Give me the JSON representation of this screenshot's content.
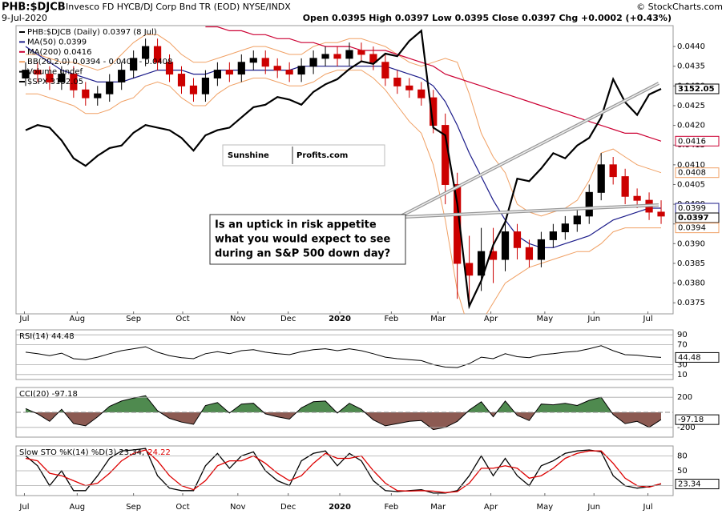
{
  "chart_data": [
    {
      "type": "candlestick",
      "title": "PHB:$DJCB",
      "subtitle": "Invesco FD HYCB/DJ Corp Bnd TR (EOD) NYSE/INDX",
      "date": "9-Jul-2020",
      "source": "© StockCharts.com",
      "quote": "Open 0.0395 High 0.0397 Low 0.0395 Close 0.0397 Chg +0.0002 (+0.43%)",
      "name": "PHB:$DJCB (Daily) 0.0397 (8 Jul)",
      "tag": "0.0397",
      "legend_extra": "Volume undef",
      "logo": [
        "Sunshine",
        "Profits.com"
      ],
      "annotation": [
        "Is an uptick in risk appetite",
        "what you would expect to see",
        "during an S&P 500 down day?"
      ],
      "up_color": "#000000",
      "down_color": "#cc0000",
      "grid": false,
      "x": [
        0,
        1,
        2,
        3,
        4,
        5,
        6,
        7,
        8,
        9,
        10,
        11,
        12,
        13,
        14,
        15,
        16,
        17,
        18,
        19,
        20,
        21,
        22,
        23,
        24,
        25,
        26,
        27,
        28,
        29,
        30,
        31,
        32,
        33,
        34,
        35,
        36,
        37,
        38,
        39,
        40,
        41,
        42,
        43,
        44,
        45,
        46,
        47,
        48,
        49,
        50,
        51,
        52,
        53
      ],
      "xlim": [
        -0.8,
        54
      ],
      "xticks": [
        {
          "value": -0.1,
          "label": "Jul"
        },
        {
          "value": 4.3,
          "label": "Aug"
        },
        {
          "value": 9.0,
          "label": "Sep"
        },
        {
          "value": 13.1,
          "label": "Oct"
        },
        {
          "value": 17.7,
          "label": "Nov"
        },
        {
          "value": 21.9,
          "label": "Dec"
        },
        {
          "value": 26.2,
          "label": "2020"
        },
        {
          "value": 30.5,
          "label": "Feb"
        },
        {
          "value": 34.4,
          "label": "Mar"
        },
        {
          "value": 38.8,
          "label": "Apr"
        },
        {
          "value": 43.3,
          "label": "May"
        },
        {
          "value": 47.4,
          "label": "Jun"
        },
        {
          "value": 51.9,
          "label": "Jul"
        }
      ],
      "ylim": [
        0.03722,
        0.04453
      ],
      "yticks": [
        0.0375,
        {
          "value": 0.038,
          "label": "0.0380"
        },
        0.0385,
        {
          "value": 0.039,
          "label": "0.0390"
        },
        0.0395,
        {
          "value": 0.04,
          "label": "0.0400"
        },
        0.0405,
        {
          "value": 0.041,
          "label": "0.0410"
        },
        0.0415,
        {
          "value": 0.042,
          "label": "0.0420"
        },
        0.0425,
        {
          "value": 0.043,
          "label": "0.0430"
        },
        0.0435,
        {
          "value": 0.044,
          "label": "0.0440"
        }
      ],
      "y2lim": [
        2270,
        3400
      ],
      "open": [
        0.0432,
        0.0434,
        0.0433,
        0.0431,
        0.0433,
        0.0429,
        0.0427,
        0.0428,
        0.0431,
        0.0434,
        0.0437,
        0.044,
        0.0436,
        0.0433,
        0.043,
        0.0428,
        0.0432,
        0.0434,
        0.0433,
        0.0436,
        0.0437,
        0.0435,
        0.0434,
        0.0433,
        0.0435,
        0.0437,
        0.0438,
        0.0437,
        0.0439,
        0.0438,
        0.0436,
        0.0432,
        0.043,
        0.0429,
        0.0427,
        0.042,
        0.0405,
        0.0385,
        0.0382,
        0.0388,
        0.0386,
        0.0393,
        0.0389,
        0.0386,
        0.0391,
        0.0393,
        0.0395,
        0.0397,
        0.0403,
        0.041,
        0.0407,
        0.0402,
        0.0401,
        0.0398
      ],
      "high": [
        0.0436,
        0.0436,
        0.0435,
        0.0435,
        0.0435,
        0.0431,
        0.043,
        0.0433,
        0.0436,
        0.0439,
        0.0442,
        0.0442,
        0.0438,
        0.0435,
        0.0432,
        0.0434,
        0.0436,
        0.0436,
        0.0438,
        0.0439,
        0.0439,
        0.0437,
        0.0436,
        0.0437,
        0.0439,
        0.044,
        0.044,
        0.0441,
        0.0441,
        0.044,
        0.0438,
        0.0434,
        0.0432,
        0.0431,
        0.0429,
        0.0423,
        0.0408,
        0.0392,
        0.0394,
        0.0394,
        0.0396,
        0.0395,
        0.0391,
        0.0393,
        0.0395,
        0.0397,
        0.0399,
        0.0405,
        0.0413,
        0.0412,
        0.0409,
        0.0404,
        0.0403,
        0.0401
      ],
      "low": [
        0.043,
        0.0431,
        0.0429,
        0.0429,
        0.0427,
        0.0425,
        0.0425,
        0.0426,
        0.0429,
        0.0432,
        0.0435,
        0.0434,
        0.0431,
        0.0428,
        0.0426,
        0.0426,
        0.043,
        0.0431,
        0.0431,
        0.0434,
        0.0433,
        0.0432,
        0.0431,
        0.0431,
        0.0433,
        0.0435,
        0.0435,
        0.0435,
        0.0436,
        0.0434,
        0.043,
        0.0428,
        0.0427,
        0.0425,
        0.0418,
        0.04,
        0.0376,
        0.0375,
        0.0378,
        0.038,
        0.0383,
        0.0386,
        0.0384,
        0.0384,
        0.0389,
        0.0391,
        0.0393,
        0.0395,
        0.0401,
        0.0405,
        0.04,
        0.0399,
        0.0396,
        0.0395
      ],
      "close": [
        0.0434,
        0.0433,
        0.0431,
        0.0433,
        0.0429,
        0.0427,
        0.0428,
        0.0431,
        0.0434,
        0.0437,
        0.044,
        0.0436,
        0.0433,
        0.043,
        0.0428,
        0.0432,
        0.0434,
        0.0433,
        0.0436,
        0.0437,
        0.0435,
        0.0434,
        0.0433,
        0.0435,
        0.0437,
        0.0438,
        0.0437,
        0.0439,
        0.0438,
        0.0436,
        0.0432,
        0.043,
        0.0429,
        0.0427,
        0.042,
        0.0405,
        0.0385,
        0.0382,
        0.0388,
        0.0386,
        0.0393,
        0.0389,
        0.0386,
        0.0391,
        0.0393,
        0.0395,
        0.0397,
        0.0403,
        0.041,
        0.0407,
        0.0402,
        0.0401,
        0.0398,
        0.0397
      ],
      "series": [
        {
          "name": "MA(50) 0.0399",
          "color": "#1c1c8a",
          "tag": "0.0399",
          "values": [
            0.044,
            0.0438,
            0.0436,
            0.0434,
            0.0433,
            0.0432,
            0.0431,
            0.0431,
            0.0431,
            0.0432,
            0.0433,
            0.0434,
            0.0434,
            0.0434,
            0.0433,
            0.0433,
            0.0434,
            0.0434,
            0.0434,
            0.0434,
            0.0434,
            0.0434,
            0.0434,
            0.0435,
            0.0435,
            0.0435,
            0.0435,
            0.0435,
            0.0435,
            0.0435,
            0.0435,
            0.0434,
            0.0433,
            0.0432,
            0.043,
            0.0426,
            0.042,
            0.0413,
            0.0407,
            0.0401,
            0.0396,
            0.0392,
            0.039,
            0.0389,
            0.0389,
            0.039,
            0.0391,
            0.0392,
            0.0394,
            0.0396,
            0.0397,
            0.0398,
            0.0399,
            0.0399
          ]
        },
        {
          "name": "MA(200) 0.0416",
          "color": "#cc0033",
          "tag": "0.0416",
          "values": [
            null,
            null,
            null,
            null,
            null,
            null,
            null,
            null,
            null,
            null,
            null,
            null,
            null,
            null,
            null,
            0.0445,
            0.0445,
            0.0444,
            0.0444,
            0.0443,
            0.0443,
            0.0442,
            0.0442,
            0.0441,
            0.0441,
            0.044,
            0.044,
            0.044,
            0.0439,
            0.0439,
            0.0439,
            0.0438,
            0.0437,
            0.0436,
            0.0435,
            0.0433,
            0.0432,
            0.0431,
            0.043,
            0.0429,
            0.0428,
            0.0427,
            0.0426,
            0.0425,
            0.0424,
            0.0423,
            0.0422,
            0.0421,
            0.042,
            0.0419,
            0.0418,
            0.0418,
            0.0417,
            0.0416
          ]
        },
        {
          "name": "BB(20,2.0) 0.0394 - 0.0401 - 0.0408",
          "color": "#f0a064",
          "tags": [
            "0.0408",
            "0.0394"
          ],
          "upper": [
            0.0438,
            0.0438,
            0.0437,
            0.0436,
            0.0436,
            0.0435,
            0.0434,
            0.0435,
            0.0438,
            0.0441,
            0.0443,
            0.0443,
            0.0441,
            0.0438,
            0.0436,
            0.0436,
            0.0437,
            0.0438,
            0.0439,
            0.044,
            0.044,
            0.0439,
            0.0438,
            0.0438,
            0.044,
            0.0441,
            0.0441,
            0.0442,
            0.0442,
            0.0441,
            0.044,
            0.0438,
            0.0436,
            0.0435,
            0.0436,
            0.0437,
            0.0436,
            0.0428,
            0.0418,
            0.0412,
            0.0408,
            0.04,
            0.0398,
            0.0397,
            0.0398,
            0.0399,
            0.0401,
            0.0406,
            0.0413,
            0.0414,
            0.0412,
            0.041,
            0.0409,
            0.0408
          ],
          "lower": [
            0.0428,
            0.0428,
            0.0427,
            0.0426,
            0.0425,
            0.0423,
            0.0423,
            0.0424,
            0.0426,
            0.0427,
            0.043,
            0.0431,
            0.043,
            0.0427,
            0.0425,
            0.0425,
            0.0428,
            0.043,
            0.0431,
            0.0432,
            0.0432,
            0.0431,
            0.043,
            0.043,
            0.0431,
            0.0433,
            0.0434,
            0.0434,
            0.0434,
            0.0432,
            0.0429,
            0.0425,
            0.0421,
            0.0418,
            0.041,
            0.0396,
            0.0378,
            0.0368,
            0.037,
            0.0375,
            0.038,
            0.0382,
            0.0384,
            0.0385,
            0.0386,
            0.0387,
            0.0388,
            0.0388,
            0.039,
            0.0393,
            0.0394,
            0.0394,
            0.0394,
            0.0394
          ]
        },
        {
          "name": "$SPX 3152.05",
          "color": "#000000",
          "axis": "y2",
          "tag": "3152.05",
          "values": [
            2990,
            3010,
            3000,
            2950,
            2880,
            2850,
            2890,
            2920,
            2930,
            2980,
            3010,
            3000,
            2990,
            2960,
            2910,
            2970,
            2990,
            3000,
            3040,
            3080,
            3090,
            3120,
            3110,
            3090,
            3140,
            3170,
            3190,
            3230,
            3260,
            3250,
            3290,
            3280,
            3340,
            3380,
            3000,
            2970,
            2700,
            2300,
            2400,
            2540,
            2630,
            2800,
            2790,
            2840,
            2900,
            2880,
            2930,
            2960,
            3040,
            3190,
            3100,
            3050,
            3130,
            3152.05
          ]
        }
      ]
    },
    {
      "type": "line",
      "name": "RSI(14) 44.48",
      "tag": "44.48",
      "color": "#000000",
      "grid": true,
      "ylim": [
        0,
        100
      ],
      "yticks": [
        90,
        70,
        30,
        10
      ],
      "values": [
        55,
        52,
        48,
        53,
        42,
        40,
        45,
        52,
        58,
        62,
        66,
        55,
        48,
        44,
        42,
        52,
        56,
        52,
        58,
        60,
        55,
        52,
        50,
        56,
        60,
        62,
        58,
        62,
        58,
        52,
        45,
        42,
        40,
        38,
        30,
        25,
        24,
        32,
        45,
        42,
        52,
        46,
        44,
        50,
        52,
        55,
        57,
        62,
        68,
        58,
        50,
        49,
        46,
        44.48
      ]
    },
    {
      "type": "area",
      "name": "CCI(20) -97.18",
      "tag": "-97.18",
      "color": "#000000",
      "pos_color": "#4f8a4f",
      "neg_color": "#8c5a52",
      "grid": true,
      "ylim": [
        -330,
        330
      ],
      "yticks": [
        200,
        -200
      ],
      "values": [
        50,
        -20,
        -120,
        40,
        -150,
        -180,
        -60,
        80,
        150,
        190,
        220,
        20,
        -80,
        -130,
        -160,
        90,
        130,
        -10,
        110,
        120,
        -20,
        -60,
        -90,
        60,
        140,
        150,
        -10,
        120,
        40,
        -100,
        -180,
        -150,
        -120,
        -110,
        -230,
        -200,
        -120,
        30,
        140,
        -60,
        150,
        -40,
        -110,
        110,
        100,
        120,
        90,
        160,
        200,
        -30,
        -150,
        -120,
        -200,
        -97.18
      ]
    },
    {
      "type": "line",
      "tag": "23.34",
      "grid": true,
      "ylim": [
        0,
        100
      ],
      "yticks": [
        80,
        50,
        20
      ],
      "series": [
        {
          "name": "Slow STO %K(14) %D(3) 23.34,",
          "color": "#000000",
          "values": [
            80,
            60,
            20,
            50,
            10,
            10,
            40,
            75,
            90,
            92,
            95,
            40,
            15,
            10,
            10,
            60,
            85,
            55,
            80,
            88,
            50,
            30,
            20,
            70,
            85,
            90,
            60,
            85,
            70,
            30,
            10,
            8,
            10,
            12,
            5,
            5,
            10,
            40,
            80,
            40,
            75,
            40,
            20,
            60,
            70,
            85,
            90,
            92,
            88,
            40,
            20,
            15,
            18,
            23.34
          ]
        },
        {
          "name": "24.22",
          "color": "#dd0000",
          "values": [
            75,
            70,
            45,
            40,
            30,
            20,
            25,
            45,
            70,
            85,
            92,
            70,
            40,
            20,
            12,
            30,
            60,
            70,
            70,
            80,
            65,
            45,
            30,
            40,
            65,
            85,
            75,
            75,
            80,
            50,
            25,
            10,
            9,
            10,
            9,
            6,
            8,
            25,
            55,
            55,
            60,
            55,
            35,
            40,
            55,
            75,
            85,
            90,
            90,
            65,
            35,
            20,
            17,
            24.22
          ]
        }
      ]
    }
  ]
}
